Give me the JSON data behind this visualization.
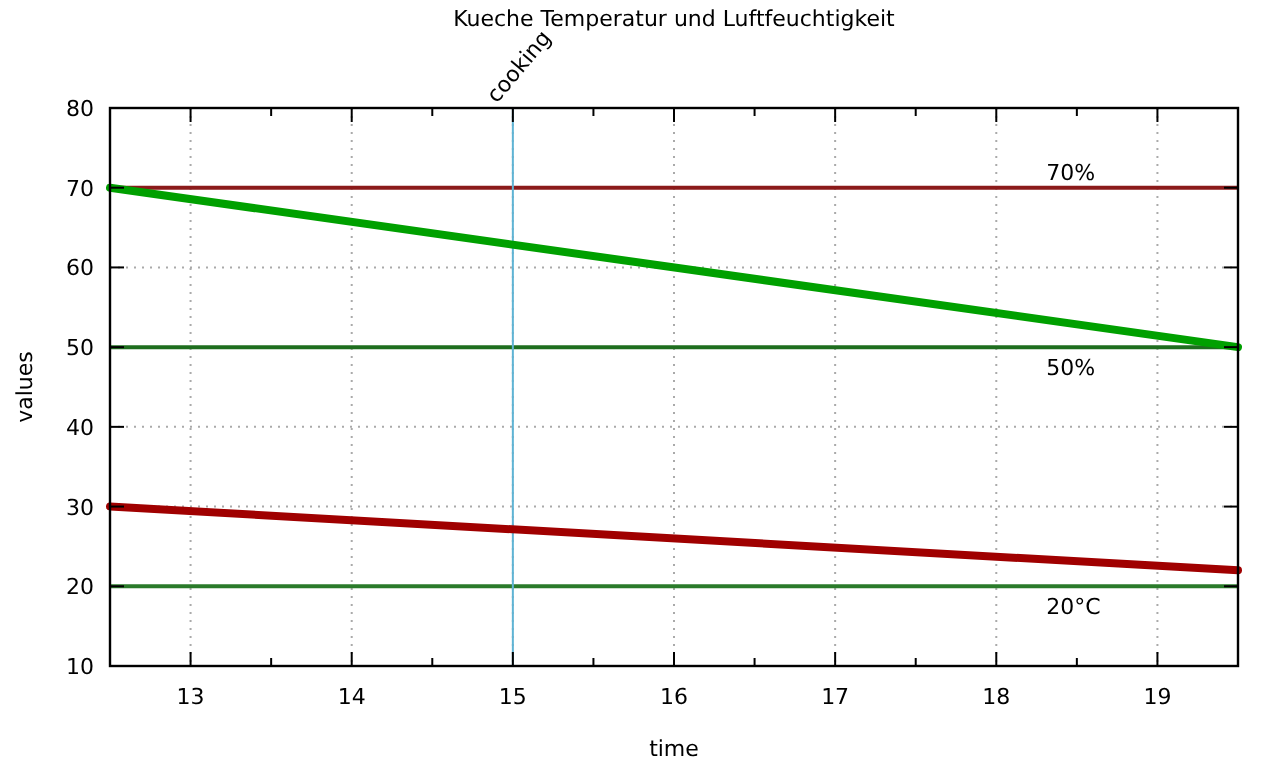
{
  "chart_data": {
    "type": "line",
    "title": "Kueche Temperatur und Luftfeuchtigkeit",
    "xlabel": "time",
    "ylabel": "values",
    "x": [
      12.5,
      19.5
    ],
    "series": [
      {
        "color": "#00a000",
        "values": [
          70,
          50
        ]
      },
      {
        "color": "#a00000",
        "values": [
          30,
          22
        ]
      }
    ],
    "xlim": [
      12.5,
      19.5
    ],
    "ylim": [
      10,
      80
    ],
    "xticks": [
      13,
      {
        "value": 13.5,
        "label": null
      },
      14,
      {
        "value": 14.5,
        "label": null
      },
      15,
      {
        "value": 15.5,
        "label": null
      },
      16,
      {
        "value": 16.5,
        "label": null
      },
      17,
      {
        "value": 17.5,
        "label": null
      },
      18,
      {
        "value": 18.5,
        "label": null
      },
      19
    ],
    "yticks": [
      10,
      20,
      30,
      40,
      50,
      60,
      70,
      80
    ],
    "grid": true,
    "marker": "none",
    "line_style": "solid",
    "ref_lines": [
      {
        "axis": "y",
        "value": 70,
        "label": "70%",
        "color": "#8b1a1a"
      },
      {
        "axis": "y",
        "value": 50,
        "label": "50%",
        "color": "#1e6e1e"
      },
      {
        "axis": "y",
        "value": 20,
        "label": "20°C",
        "color": "#2a7a2a"
      },
      {
        "axis": "x",
        "value": 15,
        "label": "cooking",
        "color": "#5fb4d4"
      }
    ]
  }
}
